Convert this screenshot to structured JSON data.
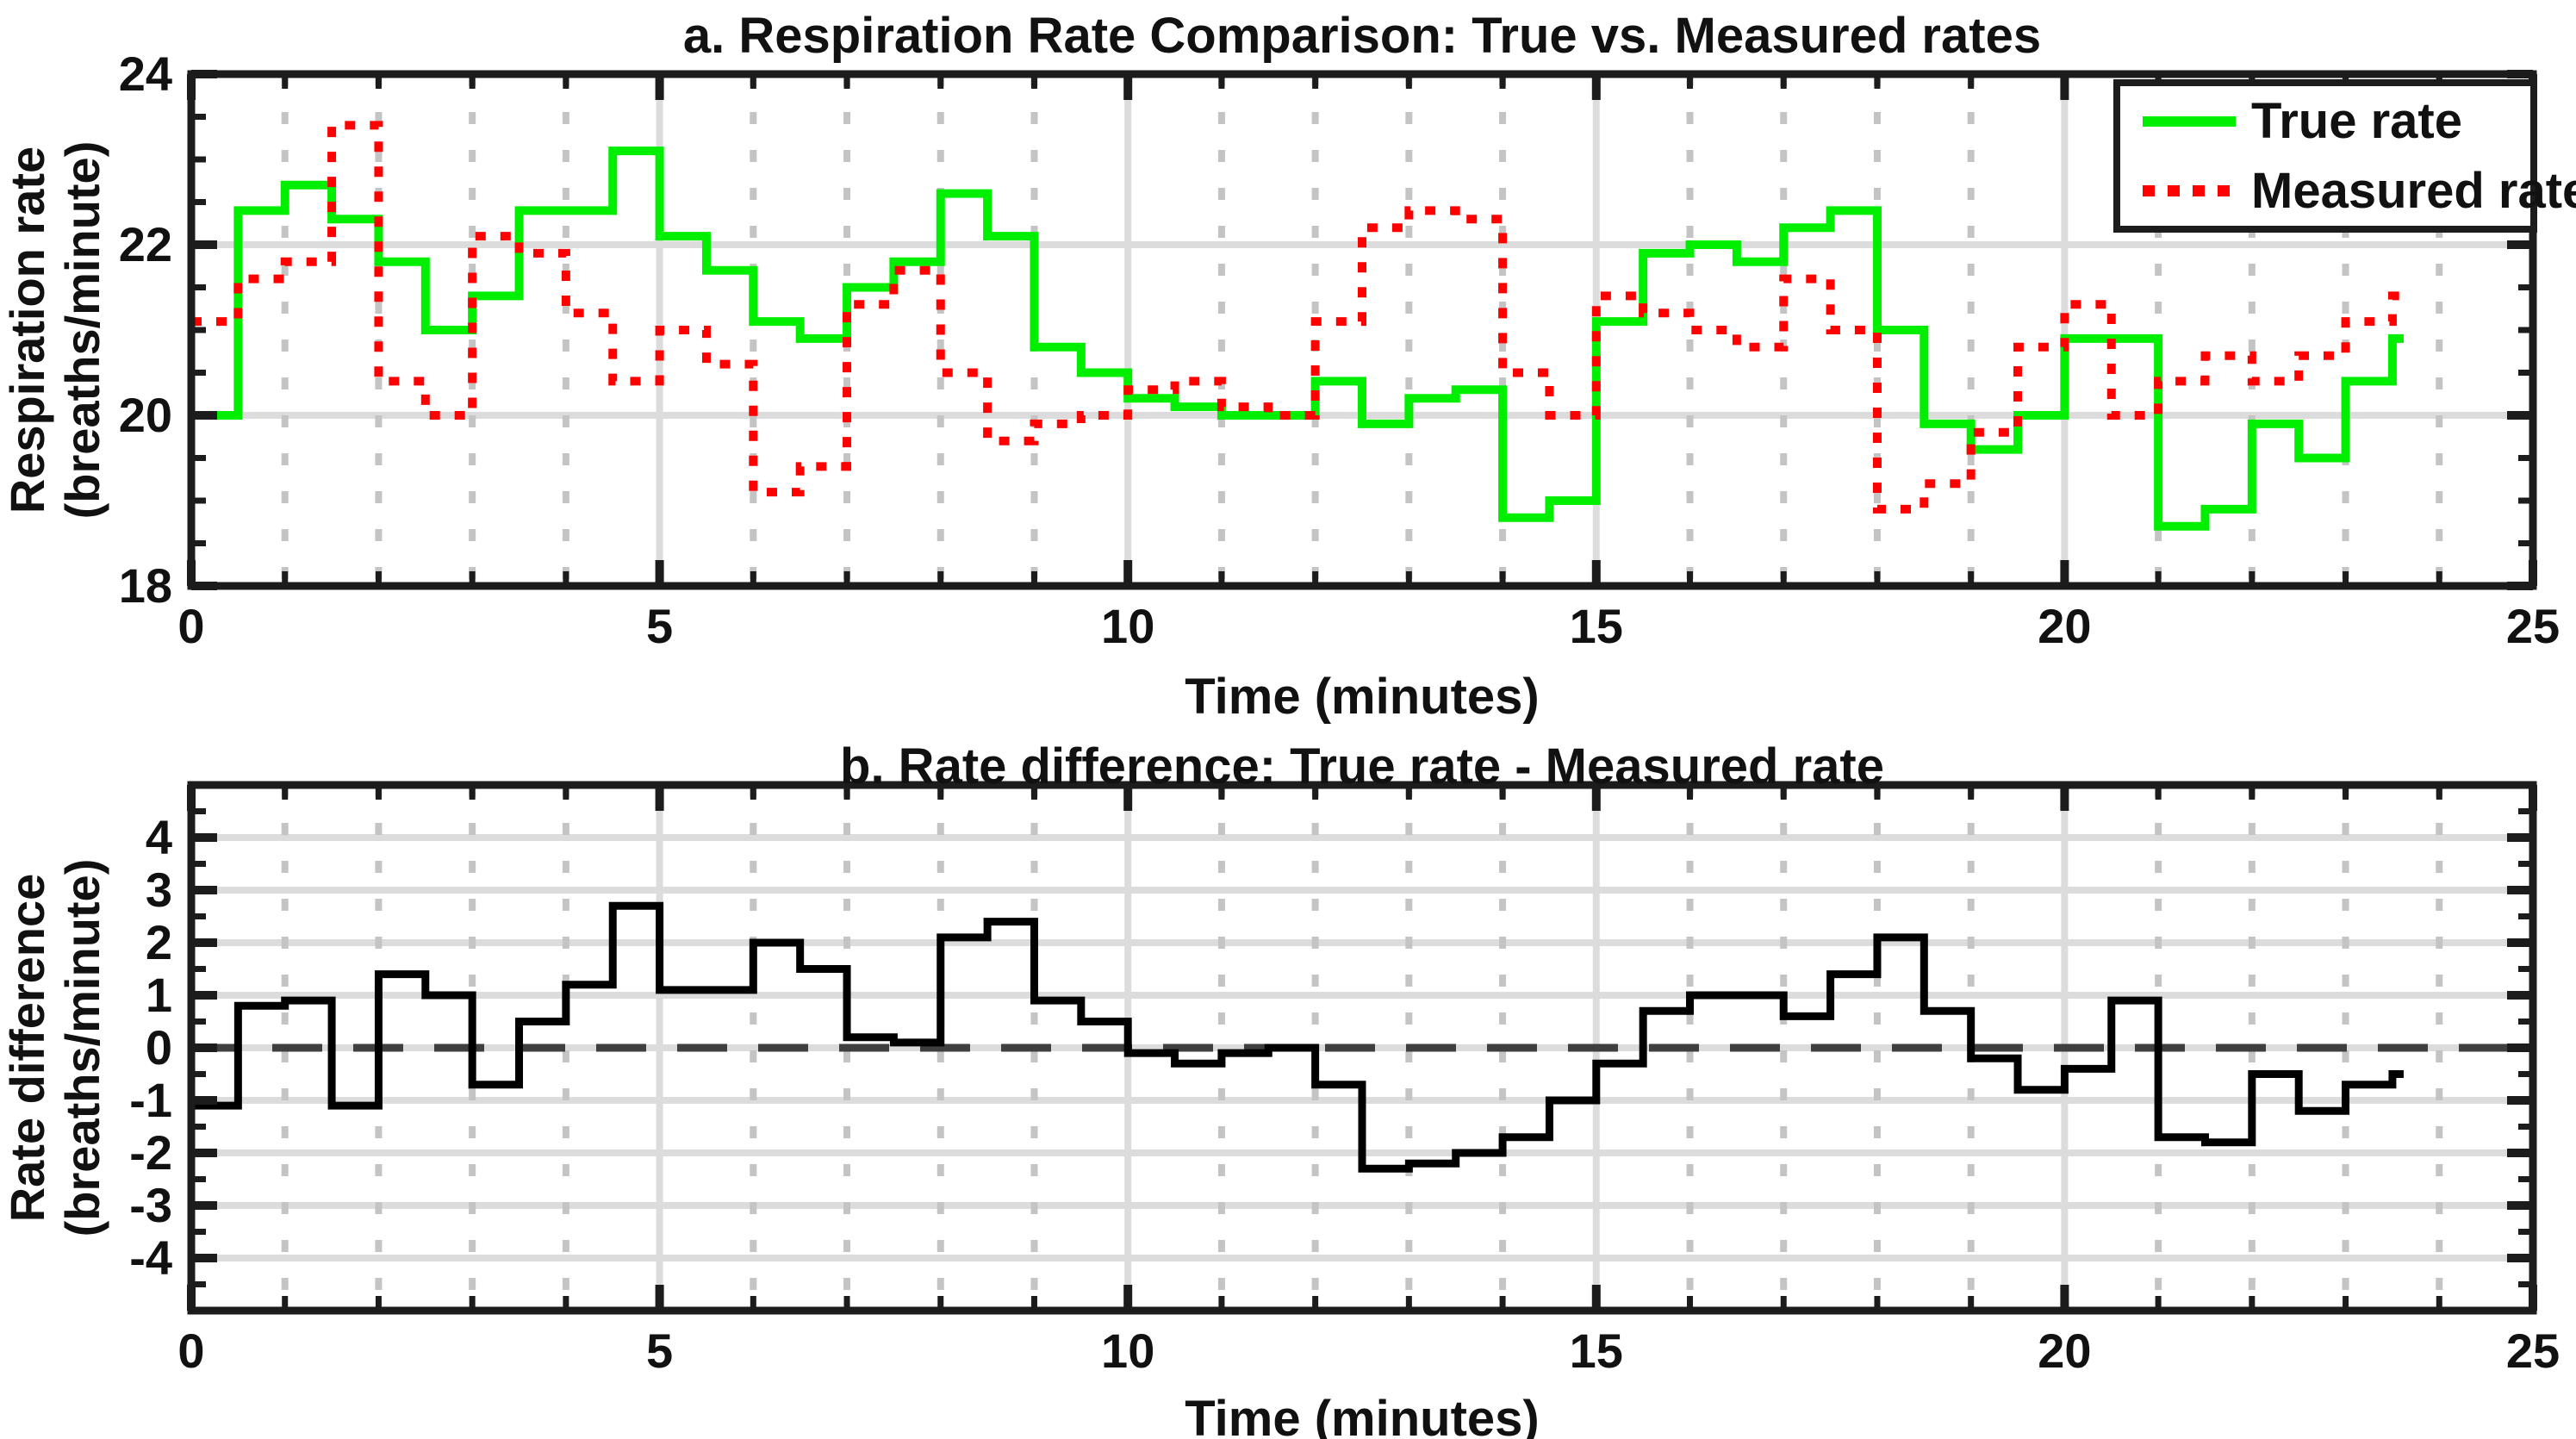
{
  "chart_data": [
    {
      "id": "top",
      "type": "line",
      "subtype": "stairs",
      "title": "a. Respiration Rate Comparison: True vs. Measured rates",
      "xlabel": "Time (minutes)",
      "ylabel_lines": [
        "Respiration rate",
        "(breaths/minute)"
      ],
      "xlim": [
        0,
        25
      ],
      "ylim": [
        18,
        24
      ],
      "x_major_ticks": [
        0,
        5,
        10,
        15,
        20,
        25
      ],
      "x_minor_step": 1,
      "y_major_ticks": [
        18,
        20,
        22,
        24
      ],
      "y_minor_step": 0.5,
      "h_gridlines": [
        20,
        22
      ],
      "v_major_gridlines": [
        5,
        10,
        15,
        20
      ],
      "grid_on": true,
      "legend": {
        "position": "top-right",
        "items": [
          {
            "label": "True rate",
            "color": "#00ee00",
            "style": "solid"
          },
          {
            "label": "Measured rate",
            "color": "#ff0000",
            "style": "dotted"
          }
        ]
      },
      "x_start": 0,
      "x_step": 0.5,
      "series": [
        {
          "name": "True rate",
          "color": "#00ee00",
          "style": "solid",
          "values": [
            20.0,
            22.4,
            22.7,
            22.3,
            21.8,
            21.0,
            21.4,
            22.4,
            22.4,
            23.1,
            22.1,
            21.7,
            21.1,
            20.9,
            21.5,
            21.8,
            22.6,
            22.1,
            20.8,
            20.5,
            20.2,
            20.1,
            20.0,
            20.0,
            20.4,
            19.9,
            20.2,
            20.3,
            18.8,
            19.0,
            21.1,
            21.9,
            22.0,
            21.8,
            22.2,
            22.4,
            21.0,
            19.9,
            19.6,
            20.0,
            20.9,
            20.9,
            18.7,
            18.9,
            19.9,
            19.5,
            20.4,
            20.9
          ]
        },
        {
          "name": "Measured rate",
          "color": "#ff0000",
          "style": "dotted",
          "values": [
            21.1,
            21.6,
            21.8,
            23.4,
            20.4,
            20.0,
            22.1,
            21.9,
            21.2,
            20.4,
            21.0,
            20.6,
            19.1,
            19.4,
            21.3,
            21.7,
            20.5,
            19.7,
            19.9,
            20.0,
            20.3,
            20.4,
            20.1,
            20.0,
            21.1,
            22.2,
            22.4,
            22.3,
            20.5,
            20.0,
            21.4,
            21.2,
            21.0,
            20.8,
            21.6,
            21.0,
            18.9,
            19.2,
            19.8,
            20.8,
            21.3,
            20.0,
            20.4,
            20.7,
            20.4,
            20.7,
            21.1,
            21.4
          ]
        }
      ]
    },
    {
      "id": "bottom",
      "type": "line",
      "subtype": "stairs",
      "title": "b. Rate difference: True rate - Measured rate",
      "xlabel": "Time (minutes)",
      "ylabel_lines": [
        "Rate difference",
        "(breaths/minute)"
      ],
      "xlim": [
        0,
        25
      ],
      "ylim": [
        -5,
        5
      ],
      "x_major_ticks": [
        0,
        5,
        10,
        15,
        20,
        25
      ],
      "x_minor_step": 1,
      "y_major_ticks": [
        -4,
        -3,
        -2,
        -1,
        0,
        1,
        2,
        3,
        4
      ],
      "y_minor_step": 0.5,
      "h_gridlines": [
        -4,
        -3,
        -2,
        -1,
        0,
        1,
        2,
        3,
        4
      ],
      "v_major_gridlines": [
        5,
        10,
        15,
        20
      ],
      "grid_on": true,
      "zero_line": {
        "value": 0,
        "style": "dashed",
        "color": "#3f3f3f"
      },
      "x_start": 0,
      "x_step": 0.5,
      "series": [
        {
          "name": "Rate difference",
          "color": "#000000",
          "style": "solid",
          "values": [
            -1.1,
            0.8,
            0.9,
            -1.1,
            1.4,
            1.0,
            -0.7,
            0.5,
            1.2,
            2.7,
            1.1,
            1.1,
            2.0,
            1.5,
            0.2,
            0.1,
            2.1,
            2.4,
            0.9,
            0.5,
            -0.1,
            -0.3,
            -0.1,
            0.0,
            -0.7,
            -2.3,
            -2.2,
            -2.0,
            -1.7,
            -1.0,
            -0.3,
            0.7,
            1.0,
            1.0,
            0.6,
            1.4,
            2.1,
            0.7,
            -0.2,
            -0.8,
            -0.4,
            0.9,
            -1.7,
            -1.8,
            -0.5,
            -1.2,
            -0.7,
            -0.5
          ]
        }
      ]
    }
  ],
  "styles": {
    "axis_color": "#1c1c1c",
    "grid_major_color": "#dcdcdc",
    "grid_minor_color": "#c4c4c4",
    "text_color": "#111111"
  }
}
